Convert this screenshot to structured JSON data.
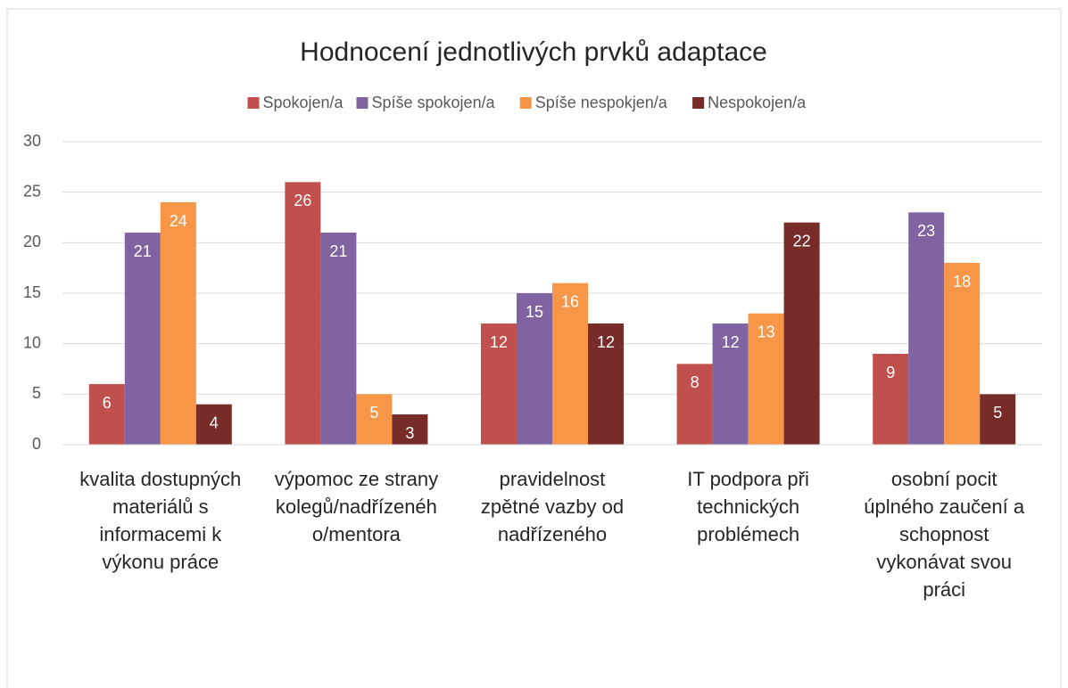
{
  "chart_data": {
    "type": "bar",
    "title": "Hodnocení jednotlivých prvků adaptace",
    "categories": [
      "kvalita dostupných materiálů s informacemi k výkonu práce",
      "výpomoc ze strany kolegů/nadřízeného/mentora",
      "pravidelnost zpětné vazby od nadřízeného",
      "IT podpora při technických problémech",
      "osobní pocit úplného zaučení a schopnost vykonávat svou práci"
    ],
    "series": [
      {
        "name": "Spokojen/a",
        "color": "#c0504d",
        "values": [
          6,
          26,
          12,
          8,
          9
        ]
      },
      {
        "name": "Spíše spokojen/a",
        "color": "#8064a2",
        "values": [
          21,
          21,
          15,
          12,
          23
        ]
      },
      {
        "name": "Spíše nespokjen/a",
        "color": "#f79646",
        "values": [
          24,
          5,
          16,
          13,
          18
        ]
      },
      {
        "name": "Nespokojen/a",
        "color": "#772c2a",
        "values": [
          4,
          3,
          12,
          22,
          5
        ]
      }
    ],
    "ylim": [
      0,
      30
    ],
    "yticks": [
      0,
      5,
      10,
      15,
      20,
      25,
      30
    ],
    "grid": true,
    "legend": "top"
  }
}
